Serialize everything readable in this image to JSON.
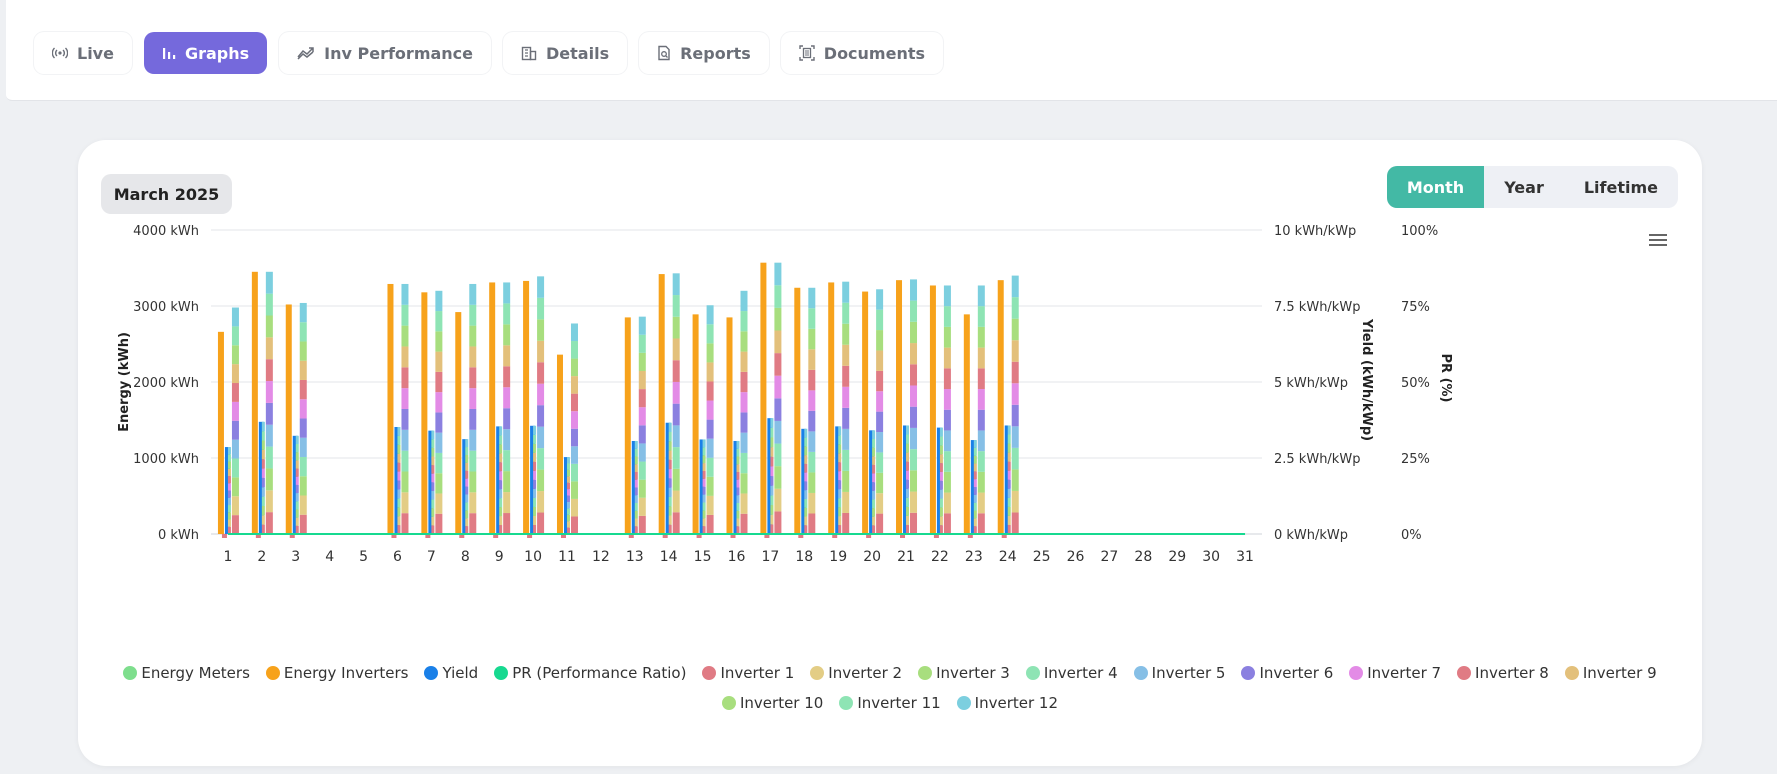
{
  "tabs": [
    {
      "label": "Live",
      "icon": "broadcast-icon"
    },
    {
      "label": "Graphs",
      "icon": "bar-chart-icon"
    },
    {
      "label": "Inv Performance",
      "icon": "trend-icon"
    },
    {
      "label": "Details",
      "icon": "building-icon"
    },
    {
      "label": "Reports",
      "icon": "report-icon"
    },
    {
      "label": "Documents",
      "icon": "document-icon"
    }
  ],
  "period_label": "March 2025",
  "range_toggle": {
    "options": [
      "Month",
      "Year",
      "Lifetime"
    ],
    "selected": "Month"
  },
  "colors": {
    "energy_inverters": "#f7a21b",
    "yield": "#1a80e8",
    "pr": "#17d990",
    "inverters": [
      "#e07b84",
      "#e3cd85",
      "#a8de7e",
      "#8ee4b4",
      "#86bfe6",
      "#8b80e0",
      "#e38be6",
      "#e07b84",
      "#e3c07b",
      "#a8de7e",
      "#8ee4b4",
      "#7ccfdf"
    ],
    "accent": "#7569dc",
    "toggle": "#43b9a5"
  },
  "chart_data": {
    "type": "bar",
    "categories": [
      "1",
      "2",
      "3",
      "4",
      "5",
      "6",
      "7",
      "8",
      "9",
      "10",
      "11",
      "12",
      "13",
      "14",
      "15",
      "16",
      "17",
      "18",
      "19",
      "20",
      "21",
      "22",
      "23",
      "24",
      "25",
      "26",
      "27",
      "28",
      "29",
      "30",
      "31"
    ],
    "y_left": {
      "label": "Energy (kWh)",
      "ticks": [
        "0 kWh",
        "1000 kWh",
        "2000 kWh",
        "3000 kWh",
        "4000 kWh"
      ],
      "range": [
        0,
        4000
      ]
    },
    "y_right1": {
      "label": "Yield (kWh/kWp)",
      "ticks": [
        "0 kWh/kWp",
        "2.5 kWh/kWp",
        "5 kWh/kWp",
        "7.5 kWh/kWp",
        "10 kWh/kWp"
      ],
      "range": [
        0,
        10
      ]
    },
    "y_right2": {
      "label": "PR (%)",
      "ticks": [
        "0%",
        "25%",
        "50%",
        "75%",
        "100%"
      ],
      "range": [
        0,
        100
      ]
    },
    "grid": true,
    "legend_position": "bottom",
    "series": [
      {
        "name": "Energy Meters",
        "color": "#7ede8d",
        "values": [
          2980,
          3450,
          3040,
          0,
          0,
          3290,
          3200,
          3290,
          3310,
          3390,
          2770,
          0,
          2860,
          3430,
          3010,
          3200,
          3570,
          3240,
          3320,
          3220,
          3350,
          3270,
          3270,
          3400,
          0,
          0,
          0,
          0,
          0,
          0,
          0
        ]
      },
      {
        "name": "Energy Inverters",
        "color": "#f7a21b",
        "values": [
          2660,
          3450,
          3020,
          0,
          0,
          3290,
          3180,
          2920,
          3310,
          3330,
          2360,
          0,
          2850,
          3420,
          2890,
          2850,
          3570,
          3240,
          3310,
          3190,
          3340,
          3270,
          2890,
          3340,
          0,
          0,
          0,
          0,
          0,
          0,
          0
        ]
      },
      {
        "name": "Yield",
        "color": "#1a80e8",
        "values": [
          2.86,
          3.69,
          3.23,
          0,
          0,
          3.52,
          3.4,
          3.12,
          3.54,
          3.56,
          2.53,
          0,
          3.06,
          3.66,
          3.11,
          3.06,
          3.81,
          3.46,
          3.54,
          3.41,
          3.57,
          3.5,
          3.09,
          3.57,
          0,
          0,
          0,
          0,
          0,
          0,
          0
        ]
      },
      {
        "name": "PR (Performance Ratio)",
        "color": "#17d990",
        "values": [
          0,
          0,
          0,
          0,
          0,
          0,
          0,
          0,
          0,
          0,
          0,
          0,
          0,
          0,
          0,
          0,
          0,
          0,
          0,
          0,
          0,
          0,
          0,
          0,
          0,
          0,
          0,
          0,
          0,
          0,
          0
        ]
      },
      {
        "name": "Inverter 1"
      },
      {
        "name": "Inverter 2"
      },
      {
        "name": "Inverter 3"
      },
      {
        "name": "Inverter 4"
      },
      {
        "name": "Inverter 5"
      },
      {
        "name": "Inverter 6"
      },
      {
        "name": "Inverter 7"
      },
      {
        "name": "Inverter 8"
      },
      {
        "name": "Inverter 9"
      },
      {
        "name": "Inverter 10"
      },
      {
        "name": "Inverter 11"
      },
      {
        "name": "Inverter 12"
      }
    ],
    "inverter_stack_totals": [
      2980,
      3450,
      3040,
      0,
      0,
      3290,
      3200,
      3290,
      3310,
      3390,
      2770,
      0,
      2860,
      3430,
      3010,
      3200,
      3570,
      3240,
      3320,
      3220,
      3350,
      3270,
      3270,
      3400,
      0,
      0,
      0,
      0,
      0,
      0,
      0
    ]
  }
}
